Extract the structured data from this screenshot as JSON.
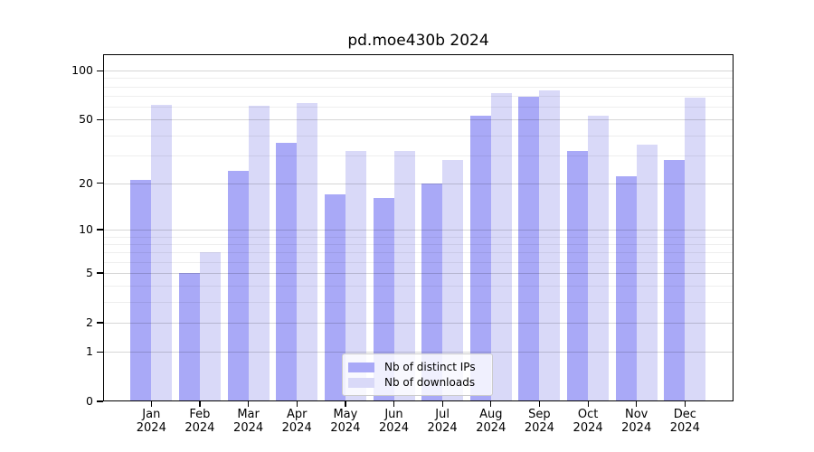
{
  "title": "pd.moe430b 2024",
  "colors": {
    "ips": "#a9a9f7",
    "downloads": "#d9d9f8",
    "grid_major": "rgba(0,0,0,0.16)",
    "grid_minor": "rgba(0,0,0,0.065)",
    "spine": "#000000",
    "text": "#000000",
    "legend_border": "#cccccc"
  },
  "chart_data": {
    "type": "bar",
    "title": "pd.moe430b 2024",
    "categories": [
      "Jan 2024",
      "Feb 2024",
      "Mar 2024",
      "Apr 2024",
      "May 2024",
      "Jun 2024",
      "Jul 2024",
      "Aug 2024",
      "Sep 2024",
      "Oct 2024",
      "Nov 2024",
      "Dec 2024"
    ],
    "months": [
      "Jan",
      "Feb",
      "Mar",
      "Apr",
      "May",
      "Jun",
      "Jul",
      "Aug",
      "Sep",
      "Oct",
      "Nov",
      "Dec"
    ],
    "year": "2024",
    "series": [
      {
        "name": "Nb of distinct IPs",
        "values": [
          21,
          5,
          24,
          36,
          17,
          16,
          20,
          53,
          69,
          32,
          22,
          28
        ]
      },
      {
        "name": "Nb of downloads",
        "values": [
          62,
          7,
          61,
          63,
          32,
          32,
          28,
          73,
          76,
          53,
          35,
          68
        ]
      }
    ],
    "yscale": "log1p",
    "ylim": [
      0,
      126
    ],
    "yticks": [
      0,
      1,
      2,
      5,
      10,
      20,
      50,
      100
    ],
    "minor_gridlines": [
      3,
      4,
      6,
      7,
      8,
      9,
      30,
      40,
      60,
      70,
      80,
      90
    ],
    "xlabel": "",
    "ylabel": "",
    "grid": true,
    "legend_position": "lower center"
  }
}
